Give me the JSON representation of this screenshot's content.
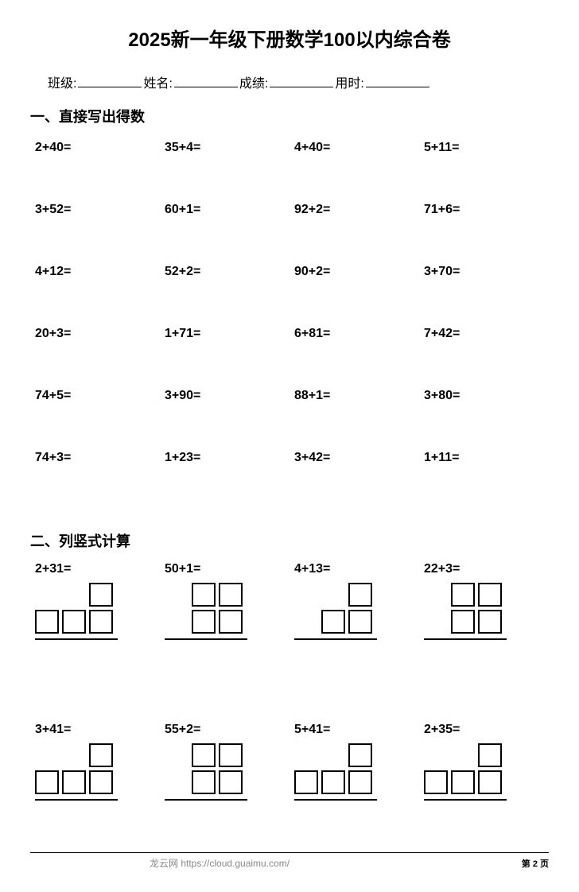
{
  "title": "2025新一年级下册数学100以内综合卷",
  "info": {
    "class_label": "班级:",
    "name_label": "姓名:",
    "score_label": "成绩:",
    "time_label": "用时:"
  },
  "section1": {
    "header": "一、直接写出得数",
    "problems": [
      [
        "2+40=",
        "35+4=",
        "4+40=",
        "5+11="
      ],
      [
        "3+52=",
        "60+1=",
        "92+2=",
        "71+6="
      ],
      [
        "4+12=",
        "52+2=",
        "90+2=",
        "3+70="
      ],
      [
        "20+3=",
        "1+71=",
        "6+81=",
        "7+42="
      ],
      [
        "74+5=",
        "3+90=",
        "88+1=",
        "3+80="
      ],
      [
        "74+3=",
        "1+23=",
        "3+42=",
        "1+11="
      ]
    ]
  },
  "section2": {
    "header": "二、列竖式计算",
    "problems": [
      [
        {
          "expr": "2+31=",
          "top_boxes": [
            0,
            0,
            1
          ],
          "bottom_boxes": [
            1,
            1,
            1
          ]
        },
        {
          "expr": "50+1=",
          "top_boxes": [
            0,
            1,
            1
          ],
          "bottom_boxes": [
            0,
            1,
            1
          ]
        },
        {
          "expr": "4+13=",
          "top_boxes": [
            0,
            0,
            1
          ],
          "bottom_boxes": [
            0,
            1,
            1
          ]
        },
        {
          "expr": "22+3=",
          "top_boxes": [
            0,
            1,
            1
          ],
          "bottom_boxes": [
            0,
            1,
            1
          ]
        }
      ],
      [
        {
          "expr": "3+41=",
          "top_boxes": [
            0,
            0,
            1
          ],
          "bottom_boxes": [
            1,
            1,
            1
          ]
        },
        {
          "expr": "55+2=",
          "top_boxes": [
            0,
            1,
            1
          ],
          "bottom_boxes": [
            0,
            1,
            1
          ]
        },
        {
          "expr": "5+41=",
          "top_boxes": [
            0,
            0,
            1
          ],
          "bottom_boxes": [
            1,
            1,
            1
          ]
        },
        {
          "expr": "2+35=",
          "top_boxes": [
            0,
            0,
            1
          ],
          "bottom_boxes": [
            1,
            1,
            1
          ]
        }
      ]
    ]
  },
  "footer": {
    "text": "龙云网 https://cloud.guaimu.com/",
    "page": "第 2 页"
  }
}
